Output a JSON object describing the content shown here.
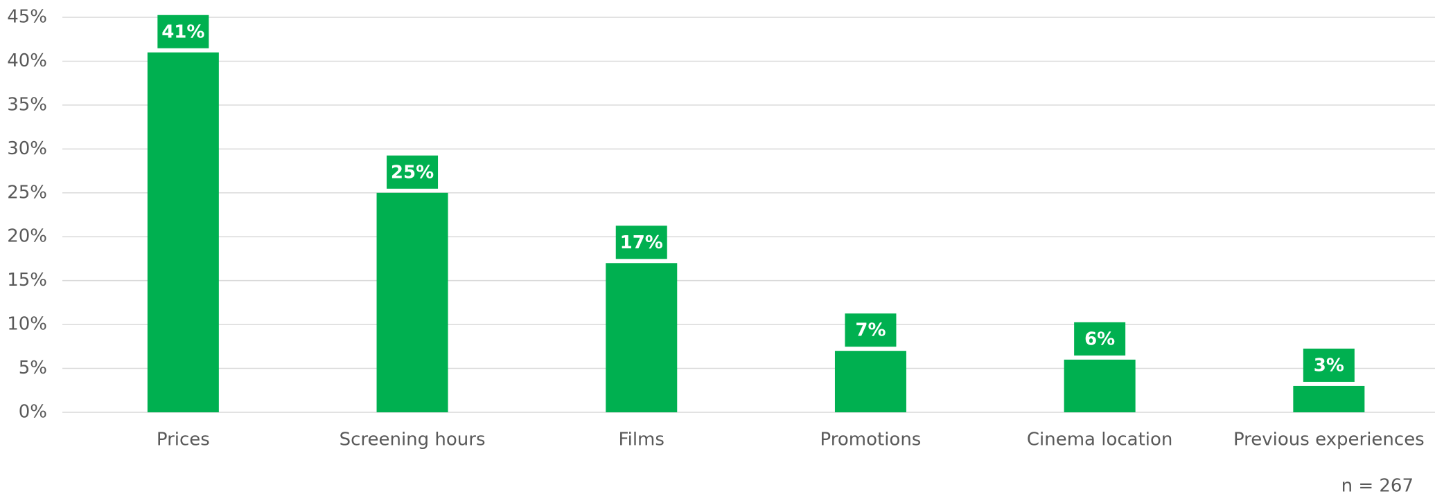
{
  "chart_data": {
    "type": "bar",
    "categories": [
      "Prices",
      "Screening hours",
      "Films",
      "Promotions",
      "Cinema location",
      "Previous experiences"
    ],
    "values": [
      41,
      25,
      17,
      7,
      6,
      3
    ],
    "value_labels": [
      "41%",
      "25%",
      "17%",
      "7%",
      "6%",
      "3%"
    ],
    "color": "#00b050",
    "ylim": [
      0,
      45
    ],
    "yticks": [
      {
        "value": 0,
        "label": "0%"
      },
      {
        "value": 5,
        "label": "5%"
      },
      {
        "value": 10,
        "label": "10%"
      },
      {
        "value": 15,
        "label": "15%"
      },
      {
        "value": 20,
        "label": "20%"
      },
      {
        "value": 25,
        "label": "25%"
      },
      {
        "value": 30,
        "label": "30%"
      },
      {
        "value": 35,
        "label": "35%"
      },
      {
        "value": 40,
        "label": "40%"
      },
      {
        "value": 45,
        "label": "45%"
      }
    ],
    "grid": true,
    "annotation": "n = 267"
  }
}
